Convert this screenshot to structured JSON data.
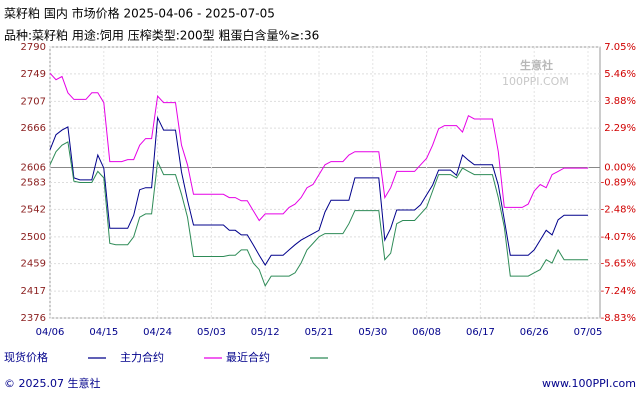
{
  "chart_data": {
    "type": "line",
    "title": "菜籽粕 国内 市场价格 2025-04-06 - 2025-07-05",
    "subtitle": "品种:菜籽粕 用途:饲用 压榨类型:200型 粗蛋白含量%≥:36",
    "watermark": {
      "name": "生意社",
      "url": "100PPI.COM"
    },
    "footer": {
      "left": "© 2025.07 生意社",
      "right": "www.100PPI.com"
    },
    "categories": [
      "04/06",
      null,
      null,
      null,
      null,
      null,
      null,
      null,
      null,
      "04/15",
      null,
      null,
      null,
      null,
      null,
      null,
      null,
      null,
      "04/24",
      null,
      null,
      null,
      null,
      null,
      null,
      null,
      null,
      "05/03",
      null,
      null,
      null,
      null,
      null,
      null,
      null,
      null,
      "05/12",
      null,
      null,
      null,
      null,
      null,
      null,
      null,
      null,
      "05/21",
      null,
      null,
      null,
      null,
      null,
      null,
      null,
      null,
      "05/30",
      null,
      null,
      null,
      null,
      null,
      null,
      null,
      null,
      "06/08",
      null,
      null,
      null,
      null,
      null,
      null,
      null,
      null,
      "06/17",
      null,
      null,
      null,
      null,
      null,
      null,
      null,
      null,
      "06/26",
      null,
      null,
      null,
      null,
      null,
      null,
      null,
      null,
      "07/05"
    ],
    "ylim": [
      2376,
      2790
    ],
    "yticks": [
      2790,
      2749,
      2707,
      2666,
      2606,
      2583,
      2542,
      2500,
      2459,
      2417,
      2376
    ],
    "y2lim": [
      -8.83,
      7.05
    ],
    "y2ticks": [
      {
        "value": 7.05,
        "label": "7.05%"
      },
      {
        "value": 5.46,
        "label": "5.46%"
      },
      {
        "value": 3.88,
        "label": "3.88%"
      },
      {
        "value": 2.29,
        "label": "2.29%"
      },
      {
        "value": 0,
        "label": "0.00%"
      },
      {
        "value": -0.89,
        "label": "-0.89%"
      },
      {
        "value": -2.48,
        "label": "-2.48%"
      },
      {
        "value": -4.07,
        "label": "-4.07%"
      },
      {
        "value": -5.65,
        "label": "-5.65%"
      },
      {
        "value": -7.24,
        "label": "-7.24%"
      },
      {
        "value": -8.83,
        "label": "-8.83%"
      }
    ],
    "grid": true,
    "series": [
      {
        "name": "现货价格",
        "color": "#00008b",
        "values": [
          2633,
          2656,
          2663,
          2668,
          2590,
          2587,
          2587,
          2587,
          2625,
          2605,
          2513,
          2513,
          2513,
          2513,
          2533,
          2572,
          2575,
          2575,
          2682,
          2663,
          2663,
          2663,
          2599,
          2556,
          2518,
          2518,
          2518,
          2518,
          2518,
          2518,
          2510,
          2510,
          2503,
          2503,
          2488,
          2472,
          2457,
          2472,
          2472,
          2472,
          2480,
          2488,
          2495,
          2500,
          2505,
          2510,
          2538,
          2556,
          2556,
          2556,
          2556,
          2590,
          2590,
          2590,
          2590,
          2590,
          2495,
          2513,
          2541,
          2541,
          2541,
          2541,
          2549,
          2564,
          2579,
          2602,
          2602,
          2602,
          2594,
          2625,
          2617,
          2610,
          2610,
          2610,
          2610,
          2579,
          2526,
          2472,
          2472,
          2472,
          2472,
          2480,
          2495,
          2510,
          2503,
          2526,
          2533,
          2533,
          2533,
          2533,
          2533
        ]
      },
      {
        "name": "主力合约",
        "color": "#e600e6",
        "values": [
          2750,
          2740,
          2745,
          2720,
          2710,
          2710,
          2710,
          2720,
          2720,
          2705,
          2615,
          2615,
          2615,
          2618,
          2618,
          2640,
          2650,
          2650,
          2715,
          2705,
          2705,
          2705,
          2640,
          2610,
          2565,
          2565,
          2565,
          2565,
          2565,
          2565,
          2560,
          2560,
          2555,
          2555,
          2540,
          2525,
          2535,
          2535,
          2535,
          2535,
          2545,
          2550,
          2560,
          2575,
          2580,
          2595,
          2610,
          2615,
          2615,
          2615,
          2625,
          2630,
          2630,
          2630,
          2630,
          2630,
          2560,
          2575,
          2600,
          2600,
          2600,
          2600,
          2610,
          2620,
          2640,
          2665,
          2670,
          2670,
          2670,
          2660,
          2685,
          2680,
          2680,
          2680,
          2680,
          2630,
          2545,
          2545,
          2545,
          2545,
          2550,
          2570,
          2580,
          2575,
          2595,
          2600,
          2605,
          2605,
          2605,
          2605,
          2605
        ]
      },
      {
        "name": "最近合约",
        "color": "#2e8b57",
        "values": [
          2610,
          2630,
          2640,
          2645,
          2585,
          2583,
          2583,
          2583,
          2600,
          2590,
          2490,
          2488,
          2488,
          2488,
          2500,
          2530,
          2535,
          2535,
          2615,
          2595,
          2595,
          2595,
          2565,
          2530,
          2470,
          2470,
          2470,
          2470,
          2470,
          2470,
          2472,
          2472,
          2480,
          2480,
          2460,
          2450,
          2425,
          2440,
          2440,
          2440,
          2440,
          2445,
          2460,
          2480,
          2490,
          2500,
          2505,
          2505,
          2505,
          2505,
          2520,
          2540,
          2540,
          2540,
          2540,
          2540,
          2465,
          2475,
          2520,
          2525,
          2525,
          2525,
          2535,
          2545,
          2570,
          2595,
          2595,
          2595,
          2590,
          2605,
          2600,
          2595,
          2595,
          2595,
          2595,
          2560,
          2515,
          2440,
          2440,
          2440,
          2440,
          2445,
          2450,
          2465,
          2460,
          2480,
          2465,
          2465,
          2465,
          2465,
          2465
        ]
      }
    ]
  }
}
